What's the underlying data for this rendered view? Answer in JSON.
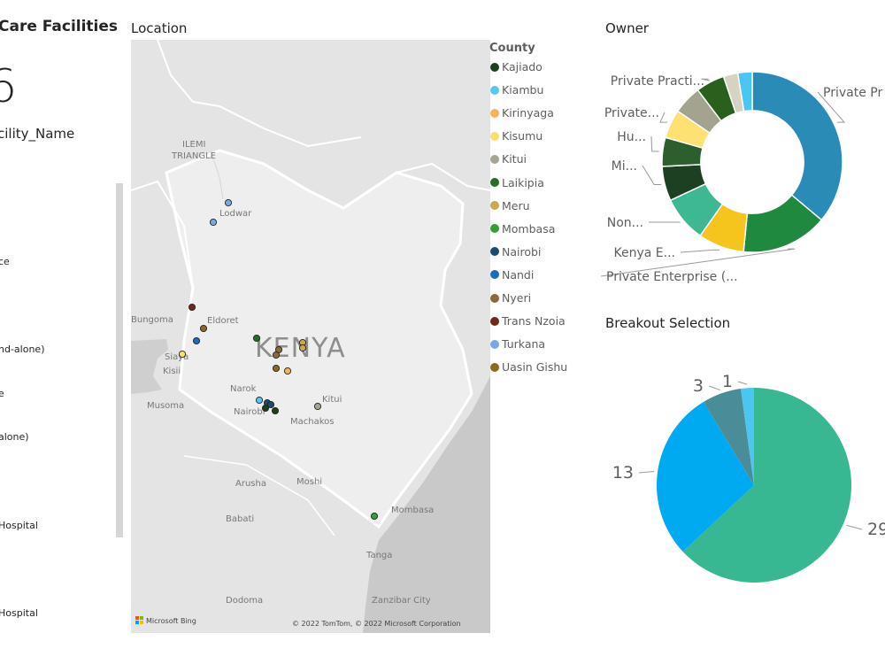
{
  "left_panel": {
    "title": "Care Facilities",
    "count": "6",
    "facility_label": "cility_Name",
    "items": [
      "ce",
      "nd-alone)",
      "e",
      "alone)",
      "Hospital",
      "Hospital"
    ]
  },
  "location": {
    "title": "Location",
    "country_label": "KENYA",
    "places": [
      "ILEMI",
      "TRIANGLE",
      "Lodwar",
      "Bungoma",
      "Eldoret",
      "Siaya",
      "Kisii",
      "Musoma",
      "Narok",
      "Nairobi",
      "Kitui",
      "Machakos",
      "Arusha",
      "Moshi",
      "Babati",
      "Mombasa",
      "Tanga",
      "Dodoma",
      "Zanzibar City"
    ],
    "bing_label": "Microsoft Bing",
    "copyright": "© 2022 TomTom, © 2022 Microsoft Corporation"
  },
  "legend": {
    "title": "County",
    "items": [
      {
        "name": "Kajiado",
        "color": "#1d3f1f"
      },
      {
        "name": "Kiambu",
        "color": "#5bc4ef"
      },
      {
        "name": "Kirinyaga",
        "color": "#f2b35e"
      },
      {
        "name": "Kisumu",
        "color": "#f8e06d"
      },
      {
        "name": "Kitui",
        "color": "#a7a493"
      },
      {
        "name": "Laikipia",
        "color": "#2a6a2a"
      },
      {
        "name": "Meru",
        "color": "#c8a850"
      },
      {
        "name": "Mombasa",
        "color": "#3b9a3b"
      },
      {
        "name": "Nairobi",
        "color": "#1b4b6e"
      },
      {
        "name": "Nandi",
        "color": "#1e6bb8"
      },
      {
        "name": "Nyeri",
        "color": "#8b6b3d"
      },
      {
        "name": "Trans Nzoia",
        "color": "#6b2a1c"
      },
      {
        "name": "Turkana",
        "color": "#7ea6e0"
      },
      {
        "name": "Uasin Gishu",
        "color": "#8a6a22"
      }
    ]
  },
  "owner_title": "Owner",
  "breakout_title": "Breakout Selection",
  "chart_data": [
    {
      "type": "scatter",
      "title": "Location",
      "legend_title": "County",
      "points": [
        {
          "county": "Turkana",
          "place": "Lodwar"
        },
        {
          "county": "Turkana",
          "place": "Lodwar"
        },
        {
          "county": "Trans Nzoia"
        },
        {
          "county": "Uasin Gishu",
          "place": "Eldoret"
        },
        {
          "county": "Nandi"
        },
        {
          "county": "Kisumu",
          "place": "Siaya"
        },
        {
          "county": "Laikipia"
        },
        {
          "county": "Nyeri"
        },
        {
          "county": "Nyeri"
        },
        {
          "county": "Meru"
        },
        {
          "county": "Meru"
        },
        {
          "county": "Kirinyaga"
        },
        {
          "county": "Uasin Gishu"
        },
        {
          "county": "Kiambu"
        },
        {
          "county": "Nairobi",
          "place": "Nairobi"
        },
        {
          "county": "Nairobi",
          "place": "Nairobi"
        },
        {
          "county": "Kajiado"
        },
        {
          "county": "Kajiado"
        },
        {
          "county": "Kitui",
          "place": "Kitui"
        },
        {
          "county": "Mombasa",
          "place": "Mombasa"
        }
      ]
    },
    {
      "type": "pie",
      "title": "Owner",
      "inner_radius_ratio": 0.57,
      "slices": [
        {
          "label": "Private Pr",
          "value": 35,
          "color": "#2a8bb7"
        },
        {
          "label": "Private Enterprise (...",
          "value": 15,
          "color": "#1f8a3f"
        },
        {
          "label": "Kenya E...",
          "value": 8,
          "color": "#f5c51d"
        },
        {
          "label": "Non...",
          "value": 8,
          "color": "#3cb893"
        },
        {
          "label": "Mi...",
          "value": 6,
          "color": "#1d3f22"
        },
        {
          "label": "Hu...",
          "value": 5,
          "color": "#2d5e2e"
        },
        {
          "label": "Private...",
          "value": 5,
          "color": "#fde173"
        },
        {
          "label": "",
          "value": 5,
          "color": "#a3a390"
        },
        {
          "label": "Private Practi...",
          "value": 5,
          "color": "#2a5f1e"
        },
        {
          "label": "",
          "value": 2.5,
          "color": "#d5d4c2"
        },
        {
          "label": "",
          "value": 2.5,
          "color": "#4cc6f0"
        }
      ]
    },
    {
      "type": "pie",
      "title": "Breakout Selection",
      "slices": [
        {
          "label": "29",
          "value": 29,
          "color": "#37b893"
        },
        {
          "label": "13",
          "value": 13,
          "color": "#00aaf0"
        },
        {
          "label": "3",
          "value": 3,
          "color": "#4b8c99"
        },
        {
          "label": "1",
          "value": 1,
          "color": "#4cc6f0"
        }
      ]
    }
  ]
}
